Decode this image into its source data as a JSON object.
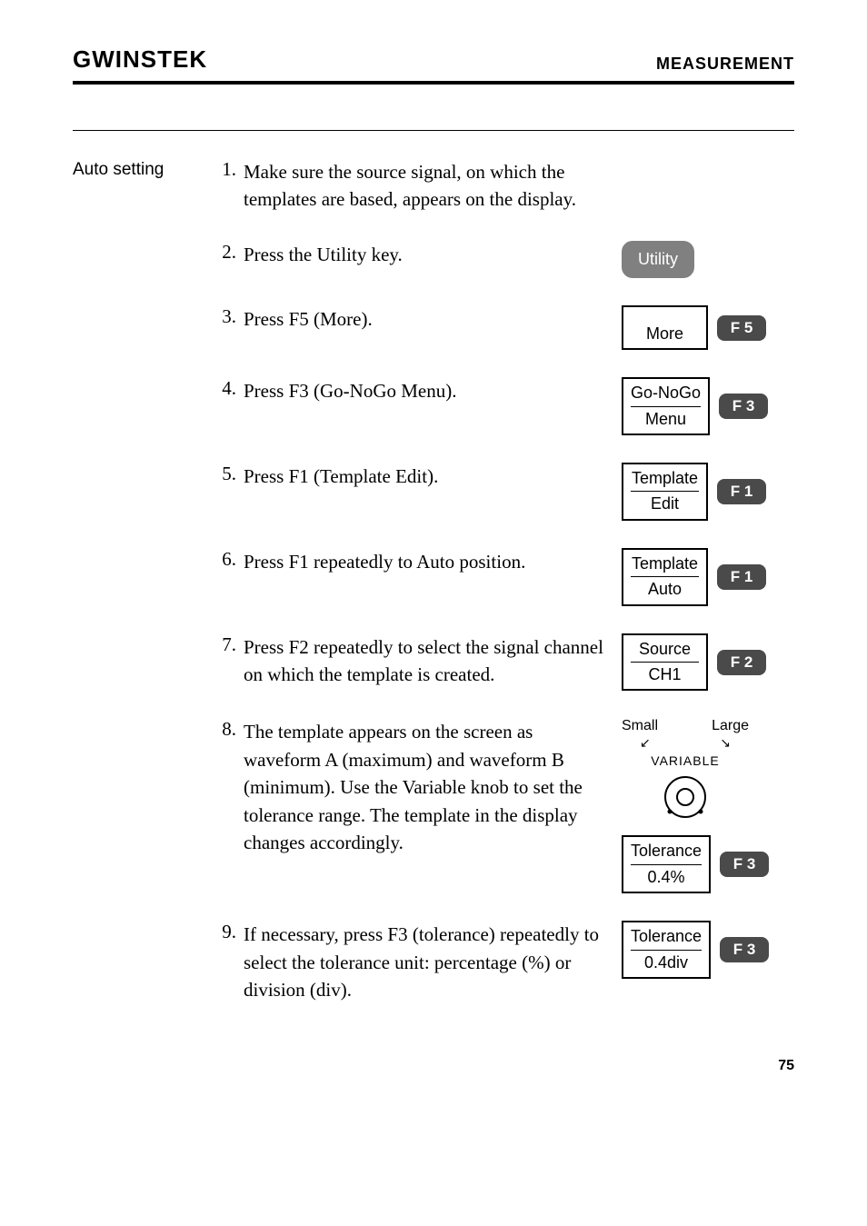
{
  "header": {
    "logo": "GWINSTEK",
    "section": "MEASUREMENT"
  },
  "sideLabel": "Auto setting",
  "steps": [
    {
      "num": "1.",
      "text": "Make sure the source signal, on which the templates are based, appears on the display.",
      "widget": null
    },
    {
      "num": "2.",
      "text": "Press the Utility key.",
      "widget": {
        "type": "utility",
        "label": "Utility"
      }
    },
    {
      "num": "3.",
      "text": "Press F5 (More).",
      "widget": {
        "type": "menu-fkey",
        "menuTop": "",
        "menuBottom": "More",
        "fkey": "F  5",
        "singleLine": true
      }
    },
    {
      "num": "4.",
      "text": "Press F3 (Go-NoGo Menu).",
      "widget": {
        "type": "menu-fkey",
        "menuTop": "Go-NoGo",
        "menuBottom": "Menu",
        "fkey": "F  3"
      }
    },
    {
      "num": "5.",
      "text": "Press F1 (Template Edit).",
      "widget": {
        "type": "menu-fkey",
        "menuTop": "Template",
        "menuBottom": "Edit",
        "fkey": "F  1"
      }
    },
    {
      "num": "6.",
      "text": "Press F1 repeatedly to Auto position.",
      "widget": {
        "type": "menu-fkey",
        "menuTop": "Template",
        "menuBottom": "Auto",
        "fkey": "F  1"
      }
    },
    {
      "num": "7.",
      "text": "Press F2 repeatedly to select the signal channel on which the template is created.",
      "widget": {
        "type": "menu-fkey",
        "menuTop": "Source",
        "menuBottom": "CH1",
        "fkey": "F  2"
      }
    },
    {
      "num": "8.",
      "text": "The template appears on the screen as waveform A (maximum) and waveform B (minimum). Use the Variable knob to set the tolerance range. The template in the display changes accordingly.",
      "widget": {
        "type": "knob-menu",
        "knobSmall": "Small",
        "knobLarge": "Large",
        "knobName": "VARIABLE",
        "menuTop": "Tolerance",
        "menuBottom": "0.4%",
        "fkey": "F  3"
      }
    },
    {
      "num": "9.",
      "text": "If necessary, press F3 (tolerance) repeatedly to select the tolerance unit: percentage (%) or division (div).",
      "widget": {
        "type": "menu-fkey",
        "menuTop": "Tolerance",
        "menuBottom": "0.4div",
        "fkey": "F  3"
      }
    }
  ],
  "pageNum": "75"
}
